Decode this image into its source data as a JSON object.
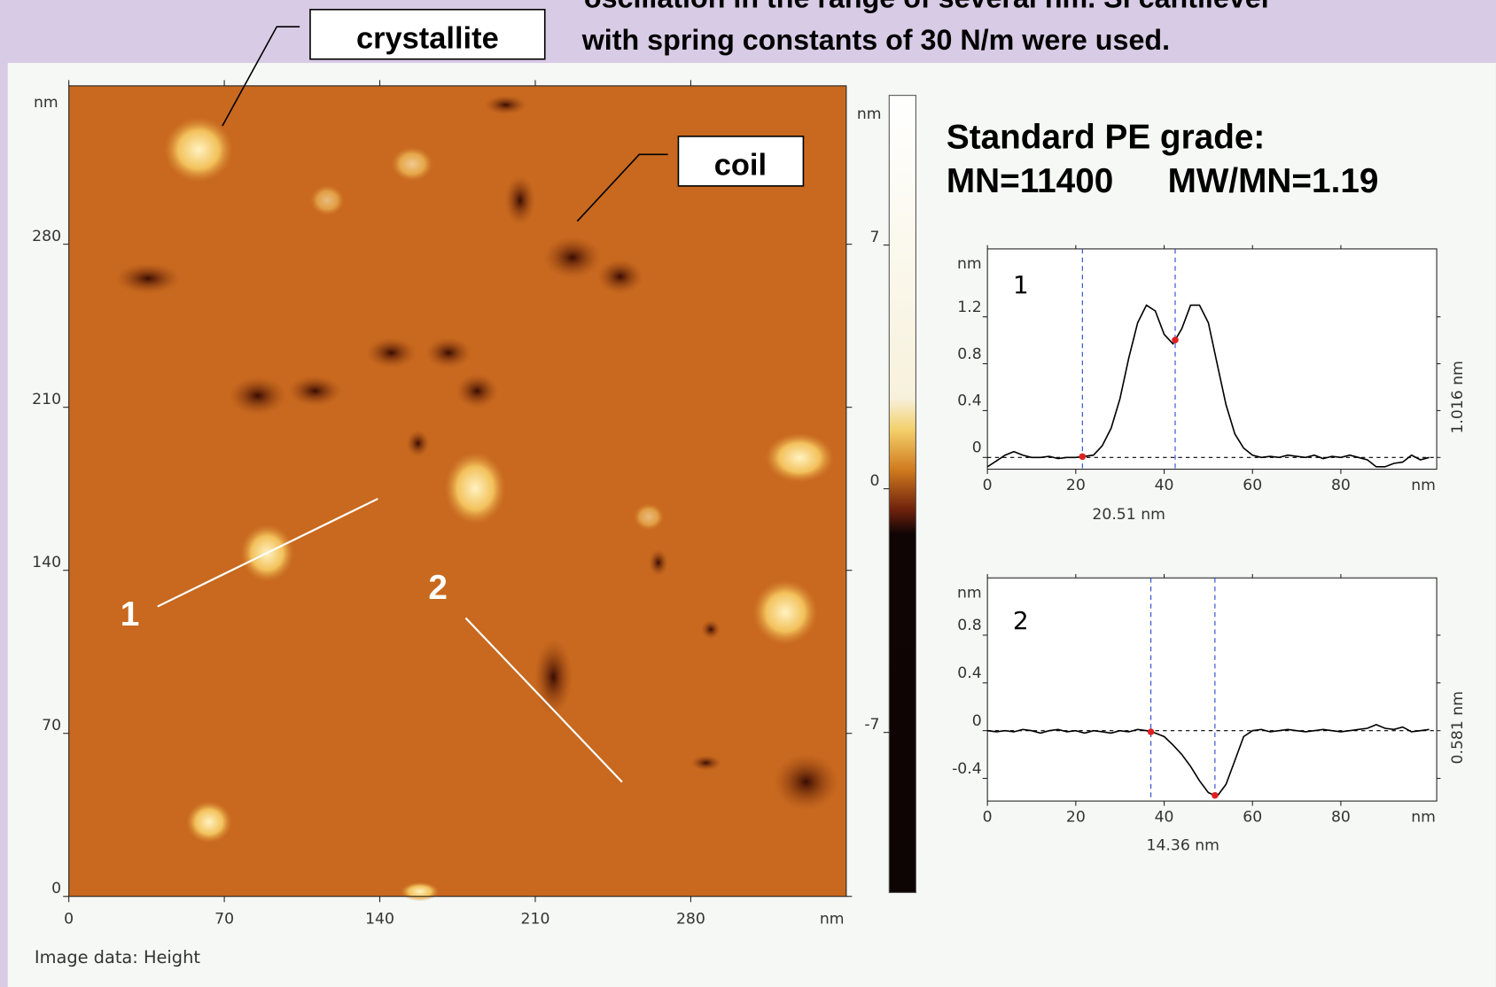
{
  "header": {
    "line1": "oscillation in the range of several nm. Si cantilever",
    "line2": "with spring constants of 30 N/m were used."
  },
  "callouts": [
    "crystallite",
    "coil"
  ],
  "afm_image": {
    "xlim": [
      0,
      350
    ],
    "xticks": [
      0,
      70,
      140,
      210,
      280
    ],
    "ylim": [
      0,
      348
    ],
    "yticks": [
      0,
      70,
      140,
      210,
      280
    ],
    "x_unit": "nm",
    "y_unit": "nm",
    "profile_labels": [
      "1",
      "2"
    ],
    "caption": "Image data: Height"
  },
  "colorbar": {
    "unit": "nm",
    "ylim": [
      -11.6,
      11.3
    ],
    "yticks": [
      -7,
      0,
      7
    ]
  },
  "sample": {
    "title": "Standard PE grade:",
    "mn": "MN=11400",
    "mwmn": "MW/MN=1.19"
  },
  "chart_data": [
    {
      "type": "line",
      "label": "1",
      "color": "#000000",
      "x": [
        0,
        2,
        4,
        6,
        8,
        10,
        12,
        14,
        16,
        18,
        20,
        22,
        24,
        26,
        28,
        30,
        32,
        34,
        36,
        38,
        40,
        42,
        44,
        46,
        48,
        50,
        52,
        54,
        56,
        58,
        60,
        62,
        64,
        66,
        68,
        70,
        72,
        74,
        76,
        78,
        80,
        82,
        84,
        86,
        88,
        90,
        92,
        94,
        96,
        98,
        100
      ],
      "values": [
        -0.08,
        -0.03,
        0.02,
        0.05,
        0.02,
        0,
        0,
        0.01,
        -0.01,
        0,
        0,
        0.01,
        0.02,
        0.1,
        0.25,
        0.5,
        0.85,
        1.15,
        1.3,
        1.25,
        1.05,
        0.97,
        1.1,
        1.3,
        1.3,
        1.15,
        0.8,
        0.45,
        0.2,
        0.08,
        0.02,
        0,
        0.01,
        0,
        0.02,
        0.01,
        0,
        0.02,
        -0.01,
        0.01,
        0,
        0.02,
        0,
        -0.02,
        -0.08,
        -0.08,
        -0.05,
        -0.04,
        0.02,
        -0.02,
        0
      ],
      "xlim": [
        0,
        101.7
      ],
      "xticks": [
        0,
        20,
        40,
        60,
        80
      ],
      "ylim": [
        -0.1,
        1.78
      ],
      "yticks": [
        0,
        0.4,
        0.8,
        1.2
      ],
      "x_unit": "nm",
      "y_unit": "nm",
      "cursors": [
        21.5,
        42.5
      ],
      "cursor_distance": "20.51 nm",
      "height_difference": "1.016 nm"
    },
    {
      "type": "line",
      "label": "2",
      "color": "#000000",
      "x": [
        0,
        2,
        4,
        6,
        8,
        10,
        12,
        14,
        16,
        18,
        20,
        22,
        24,
        26,
        28,
        30,
        32,
        34,
        36,
        38,
        40,
        42,
        44,
        46,
        48,
        50,
        52,
        54,
        56,
        58,
        60,
        62,
        64,
        66,
        68,
        70,
        72,
        74,
        76,
        78,
        80,
        82,
        84,
        86,
        88,
        90,
        92,
        94,
        96,
        98,
        100
      ],
      "values": [
        0,
        -0.01,
        0,
        -0.01,
        0.01,
        0,
        -0.02,
        0,
        0.01,
        -0.01,
        0,
        -0.02,
        0,
        -0.01,
        -0.02,
        0,
        -0.01,
        0.01,
        0,
        -0.02,
        -0.05,
        -0.12,
        -0.2,
        -0.3,
        -0.42,
        -0.52,
        -0.55,
        -0.45,
        -0.25,
        -0.05,
        0,
        0.01,
        -0.01,
        0,
        0.01,
        0,
        -0.01,
        0,
        0.01,
        0,
        -0.01,
        0,
        0.01,
        0.02,
        0.05,
        0.02,
        0.01,
        0.03,
        -0.01,
        0,
        0.01
      ],
      "xlim": [
        0,
        101.7
      ],
      "xticks": [
        0,
        20,
        40,
        60,
        80
      ],
      "ylim": [
        -0.59,
        1.28
      ],
      "yticks": [
        -0.4,
        0,
        0.4,
        0.8
      ],
      "x_unit": "nm",
      "y_unit": "nm",
      "cursors": [
        37,
        51.5
      ],
      "cursor_distance": "14.36 nm",
      "height_difference": "0.581 nm"
    }
  ]
}
